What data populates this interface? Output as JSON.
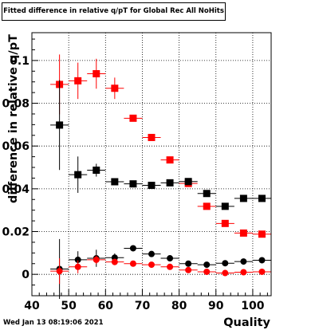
{
  "title": "Fitted difference in relative q/pT for Global Rec All NoHits",
  "timestamp": "Wed Jan 13 08:19:06 2021",
  "chart_data": {
    "type": "scatter",
    "title": "Fitted difference in relative q/pT for Global Rec All NoHits",
    "xlabel": "Quality",
    "ylabel": "difference in relative q/pT",
    "xlim": [
      40,
      105
    ],
    "ylim": [
      -0.01,
      0.113
    ],
    "grid": true,
    "x_ticks": [
      {
        "value": 40,
        "label": "40"
      },
      {
        "value": 50,
        "label": "50"
      },
      {
        "value": 60,
        "label": "60"
      },
      {
        "value": 70,
        "label": "70"
      },
      {
        "value": 80,
        "label": "80"
      },
      {
        "value": 90,
        "label": "90"
      },
      {
        "value": 100,
        "label": "100"
      }
    ],
    "y_ticks": [
      {
        "value": 0,
        "label": "0"
      },
      {
        "value": 0.02,
        "label": "0.02"
      },
      {
        "value": 0.04,
        "label": "0.04"
      },
      {
        "value": 0.06,
        "label": "0.06"
      },
      {
        "value": 0.08,
        "label": "0.08"
      },
      {
        "value": 0.1,
        "label": "0.1"
      }
    ],
    "x": [
      47.5,
      52.5,
      57.5,
      62.5,
      67.5,
      72.5,
      77.5,
      82.5,
      87.5,
      92.5,
      97.5,
      102.5
    ],
    "xerr": 2.5,
    "series": [
      {
        "marker": "square",
        "color": "#ff0000",
        "y": [
          0.0888,
          0.0905,
          0.0938,
          0.087,
          0.073,
          0.064,
          0.0535,
          0.0425,
          0.0318,
          0.0238,
          0.0193,
          0.0188
        ],
        "yerr": [
          0.014,
          0.0085,
          0.007,
          0.005,
          0.0015,
          0.0006,
          0.0005,
          0.0005,
          0.0004,
          0.0004,
          0.0004,
          0.0004
        ]
      },
      {
        "marker": "square",
        "color": "#000000",
        "y": [
          0.0698,
          0.0466,
          0.0487,
          0.0433,
          0.0423,
          0.0416,
          0.0428,
          0.0434,
          0.0378,
          0.0318,
          0.0355,
          0.0355
        ],
        "yerr": [
          0.021,
          0.0085,
          0.003,
          0.0015,
          0.0008,
          0.0006,
          0.0005,
          0.0005,
          0.0004,
          0.0004,
          0.0004,
          0.0004
        ]
      },
      {
        "marker": "circle",
        "color": "#000000",
        "y": [
          0.0025,
          0.0068,
          0.0075,
          0.0078,
          0.0122,
          0.0095,
          0.0075,
          0.005,
          0.0045,
          0.0052,
          0.006,
          0.0066
        ],
        "yerr": [
          0.014,
          0.004,
          0.004,
          0.002,
          0.0012,
          0.0006,
          0.0005,
          0.0005,
          0.0004,
          0.0004,
          0.0004,
          0.0004
        ]
      },
      {
        "marker": "circle",
        "color": "#ff0000",
        "y": [
          0.0015,
          0.0035,
          0.0068,
          0.0058,
          0.005,
          0.0045,
          0.0035,
          0.002,
          0.0012,
          0.0006,
          0.001,
          0.0012
        ],
        "yerr": [
          0.006,
          0.003,
          0.002,
          0.0015,
          0.001,
          0.0006,
          0.0005,
          0.0005,
          0.0004,
          0.0004,
          0.0004,
          0.0004
        ]
      }
    ]
  }
}
